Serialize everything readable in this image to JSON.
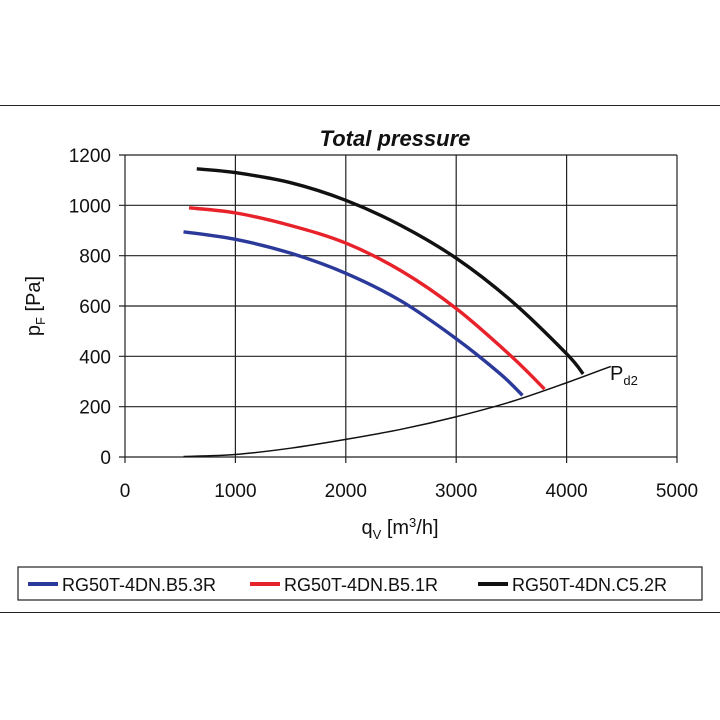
{
  "chart_data": {
    "type": "line",
    "title": "Total pressure",
    "xlabel": {
      "main": "q",
      "sub": "V",
      "unit": " [m",
      "sup": "3",
      "unit2": "/h]"
    },
    "ylabel": {
      "main": "p",
      "sub": "F",
      "unit": " [Pa]"
    },
    "xlim": [
      0,
      5000
    ],
    "ylim": [
      0,
      1200
    ],
    "xticks": [
      0,
      1000,
      2000,
      3000,
      4000,
      5000
    ],
    "yticks": [
      0,
      200,
      400,
      600,
      800,
      1000,
      1200
    ],
    "grid": true,
    "series": [
      {
        "name": "RG50T-4DN.B5.3R",
        "color": "#2b3a9a",
        "x": [
          530,
          1000,
          1500,
          2000,
          2500,
          3000,
          3400,
          3600
        ],
        "y": [
          895,
          865,
          810,
          730,
          620,
          470,
          330,
          245
        ]
      },
      {
        "name": "RG50T-4DN.B5.1R",
        "color": "#e8222a",
        "x": [
          580,
          1000,
          1500,
          2000,
          2500,
          3000,
          3500,
          3800
        ],
        "y": [
          990,
          970,
          920,
          850,
          740,
          590,
          400,
          270
        ]
      },
      {
        "name": "RG50T-4DN.C5.2R",
        "color": "#111111",
        "x": [
          650,
          1000,
          1500,
          2000,
          2500,
          3000,
          3500,
          4000,
          4150
        ],
        "y": [
          1145,
          1130,
          1090,
          1020,
          920,
          790,
          620,
          410,
          330
        ]
      }
    ],
    "reference_curve": {
      "label_main": "P",
      "label_sub": "d2",
      "color": "#111111",
      "x": [
        530,
        1000,
        1500,
        2000,
        2500,
        3000,
        3500,
        4000,
        4400
      ],
      "y": [
        2,
        10,
        35,
        70,
        110,
        160,
        220,
        295,
        360
      ]
    },
    "legend_position": "bottom"
  }
}
